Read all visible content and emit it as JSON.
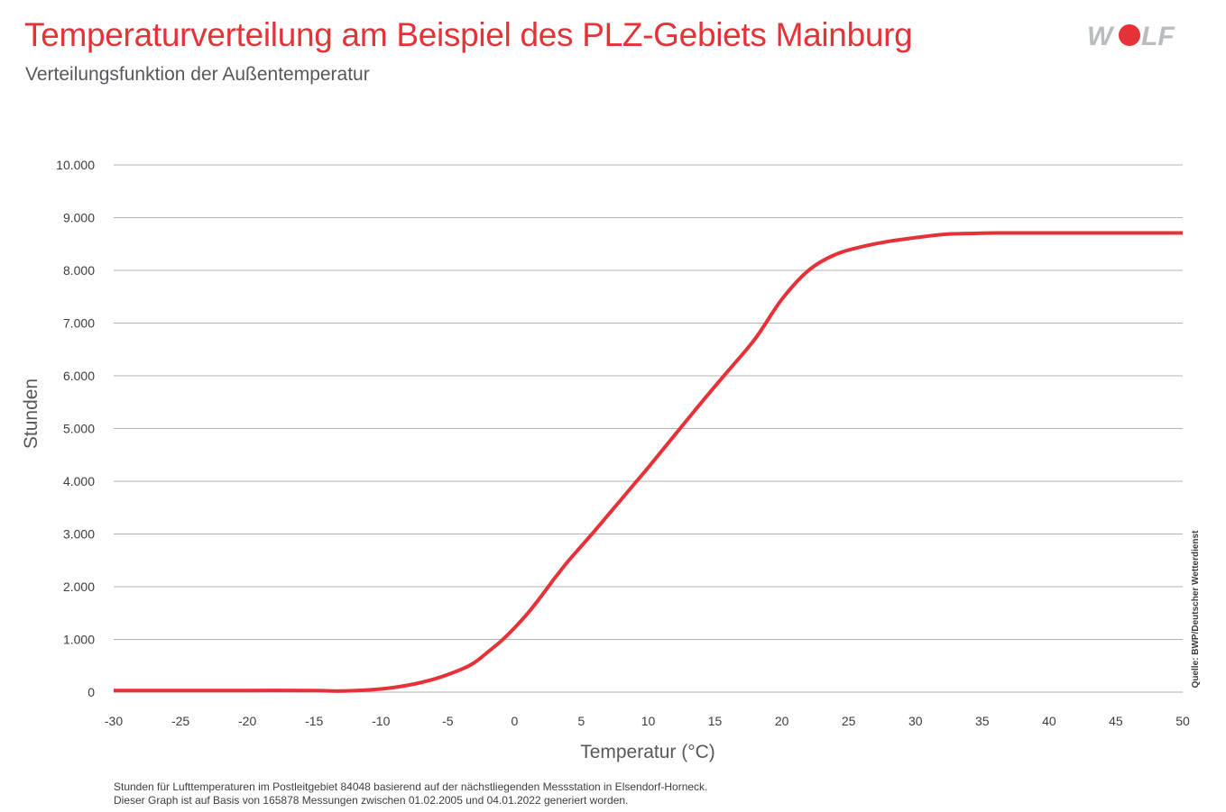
{
  "header": {
    "title": "Temperaturverteilung am Beispiel des PLZ-Gebiets Mainburg",
    "subtitle": "Verteilungsfunktion der Außentemperatur"
  },
  "logo": {
    "text": "WOLF",
    "icon": "wolf-logo",
    "color": "#b9bcbf",
    "dot_color": "#e53238"
  },
  "colors": {
    "line": "#e53238",
    "grid": "#b3b3b3",
    "tick_text": "#3a3d41",
    "axis_label": "#55595e"
  },
  "chart_data": {
    "type": "line",
    "xlabel": "Temperatur (°C)",
    "ylabel": "Stunden",
    "xlim": [
      -30,
      50
    ],
    "ylim": [
      0,
      10000
    ],
    "x_ticks": [
      "-30",
      "-25",
      "-20",
      "-15",
      "-10",
      "-5",
      "0",
      "5",
      "10",
      "15",
      "20",
      "25",
      "30",
      "35",
      "40",
      "45",
      "50"
    ],
    "y_ticks": [
      "0",
      "1.000",
      "2.000",
      "3.000",
      "4.000",
      "5.000",
      "6.000",
      "7.000",
      "8.000",
      "9.000",
      "10.000"
    ],
    "grid": "horizontal",
    "source": "Quelle: BWP/Deutscher Wetterdienst",
    "series": [
      {
        "x": [
          -30,
          -25,
          -20,
          -15,
          -13,
          -10,
          -8,
          -6,
          -4,
          -3,
          -2,
          -1,
          0,
          1,
          2,
          3,
          4,
          5,
          6,
          7,
          8,
          9,
          10,
          12,
          14,
          16,
          18,
          20,
          22,
          24,
          26,
          28,
          30,
          32,
          34,
          36,
          38,
          40,
          45,
          50
        ],
        "y": [
          30,
          30,
          30,
          30,
          20,
          60,
          130,
          250,
          430,
          560,
          760,
          970,
          1220,
          1500,
          1820,
          2160,
          2480,
          2770,
          3060,
          3360,
          3660,
          3960,
          4260,
          4880,
          5500,
          6100,
          6700,
          7450,
          8000,
          8300,
          8450,
          8550,
          8620,
          8680,
          8700,
          8710,
          8710,
          8710,
          8710,
          8710
        ]
      }
    ]
  },
  "footnote": {
    "line1": "Stunden für Lufttemperaturen im Postleitgebiet 84048 basierend auf der nächstliegenden Messstation in Elsendorf-Horneck.",
    "line2": "Dieser Graph ist auf Basis von 165878 Messungen zwischen 01.02.2005 und 04.01.2022 generiert worden."
  }
}
